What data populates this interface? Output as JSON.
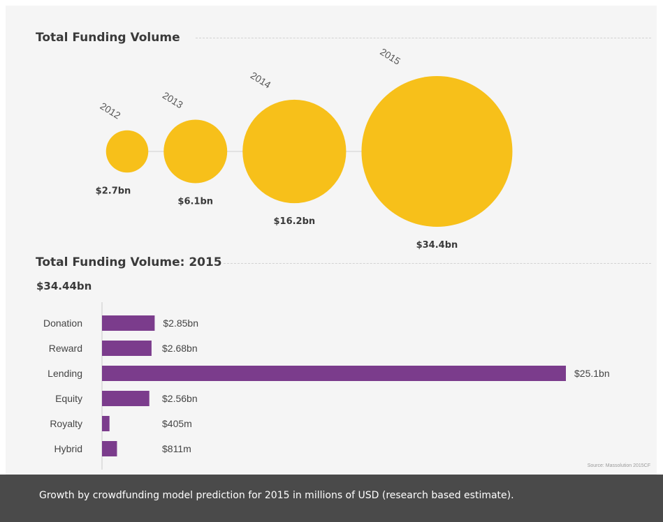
{
  "colors": {
    "bubble": "#f7c01a",
    "bar": "#7b3c8c",
    "axis": "#cccccc",
    "connector": "#d0d0d0"
  },
  "section1": {
    "title": "Total Funding Volume"
  },
  "section2": {
    "title": "Total Funding Volume: 2015",
    "total": "$34.44bn"
  },
  "source": "Source: Massolution 2015CF",
  "caption": "Growth by crowdfunding model prediction for 2015 in millions of USD (research based estimate).",
  "chart_data": [
    {
      "type": "bubble",
      "title": "Total Funding Volume",
      "categories": [
        "2012",
        "2013",
        "2014",
        "2015"
      ],
      "values": [
        2.7,
        6.1,
        16.2,
        34.4
      ],
      "unit": "bn USD",
      "value_labels": [
        "$2.7bn",
        "$6.1bn",
        "$16.2bn",
        "$34.4bn"
      ]
    },
    {
      "type": "bar",
      "orientation": "horizontal",
      "title": "Total Funding Volume: 2015",
      "categories": [
        "Donation",
        "Reward",
        "Lending",
        "Equity",
        "Royalty",
        "Hybrid"
      ],
      "values": [
        2850,
        2680,
        25100,
        2560,
        405,
        811
      ],
      "unit": "millions of USD",
      "value_labels": [
        "$2.85bn",
        "$2.68bn",
        "$25.1bn",
        "$2.56bn",
        "$405m",
        "$811m"
      ],
      "xlim": [
        0,
        25100
      ]
    }
  ]
}
